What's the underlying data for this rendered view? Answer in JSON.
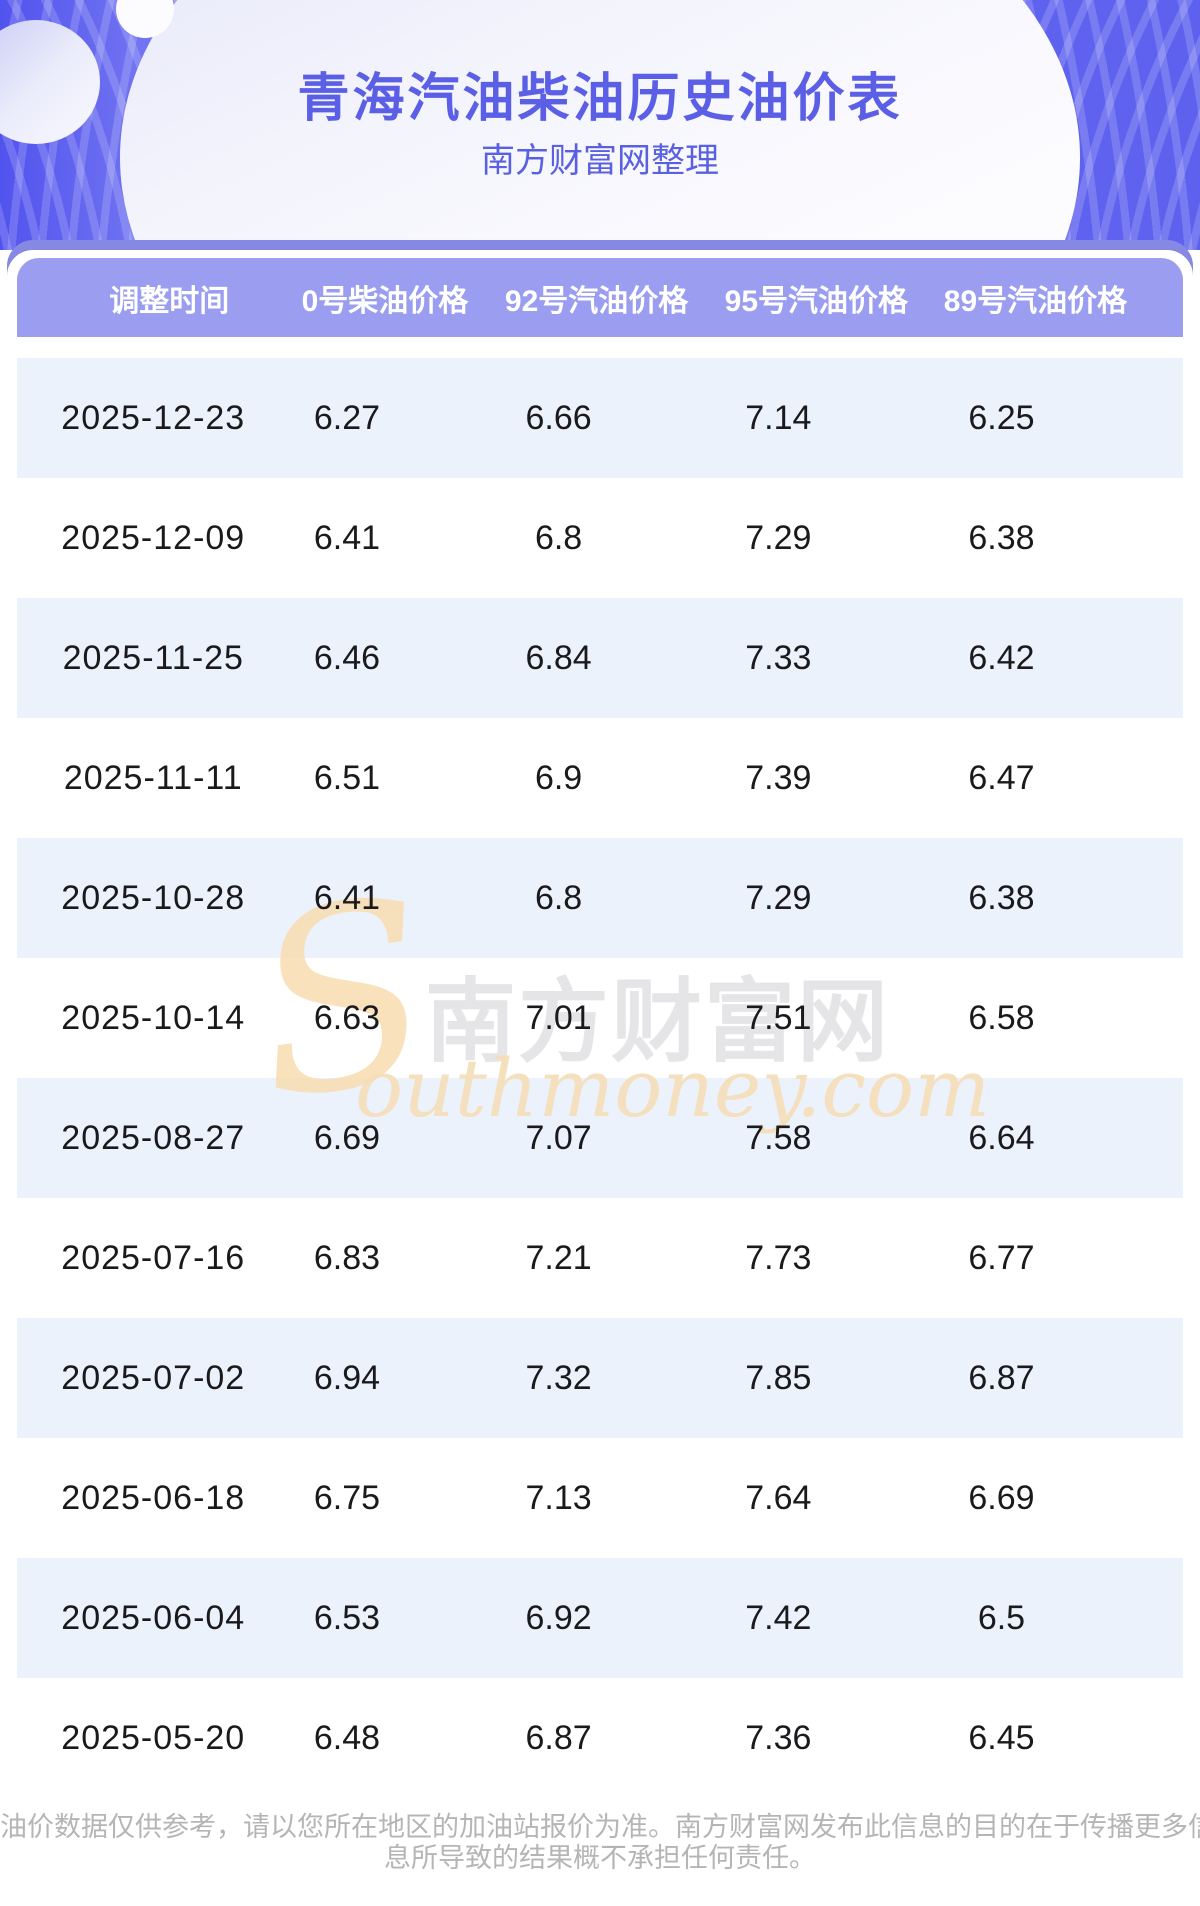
{
  "header": {
    "title": "青海汽油柴油历史油价表",
    "subtitle": "南方财富网整理"
  },
  "table": {
    "columns": [
      "调整时间",
      "0号柴油价格",
      "92号汽油价格",
      "95号汽油价格",
      "89号汽油价格"
    ],
    "rows": [
      [
        "2025-12-23",
        "6.27",
        "6.66",
        "7.14",
        "6.25"
      ],
      [
        "2025-12-09",
        "6.41",
        "6.8",
        "7.29",
        "6.38"
      ],
      [
        "2025-11-25",
        "6.46",
        "6.84",
        "7.33",
        "6.42"
      ],
      [
        "2025-11-11",
        "6.51",
        "6.9",
        "7.39",
        "6.47"
      ],
      [
        "2025-10-28",
        "6.41",
        "6.8",
        "7.29",
        "6.38"
      ],
      [
        "2025-10-14",
        "6.63",
        "7.01",
        "7.51",
        "6.58"
      ],
      [
        "2025-08-27",
        "6.69",
        "7.07",
        "7.58",
        "6.64"
      ],
      [
        "2025-07-16",
        "6.83",
        "7.21",
        "7.73",
        "6.77"
      ],
      [
        "2025-07-02",
        "6.94",
        "7.32",
        "7.85",
        "6.87"
      ],
      [
        "2025-06-18",
        "6.75",
        "7.13",
        "7.64",
        "6.69"
      ],
      [
        "2025-06-04",
        "6.53",
        "6.92",
        "7.42",
        "6.5"
      ],
      [
        "2025-05-20",
        "6.48",
        "6.87",
        "7.36",
        "6.45"
      ]
    ]
  },
  "watermark": {
    "swoosh": "S",
    "cn": "南方财富网",
    "en": "outhmoney.com"
  },
  "footer": {
    "line1": "油价数据仅供参考，请以您所在地区的加油站报价为准。南方财富网发布此信息的目的在于传播更多信息，对使用该油价信",
    "line2": "息所导致的结果概不承担任何责任。"
  },
  "colors": {
    "hero_purple": "#6064ef",
    "bar_behind": "#8689e3",
    "table_header_bg": "#9b9ef0",
    "row_alt_bg": "#ecf2fb",
    "title_text": "#5a5fe6",
    "row_text": "#1a1a1c",
    "footer_text": "#b5b5b5",
    "watermark_orange": "#f5ddb8",
    "watermark_gray": "#dcdcde"
  }
}
